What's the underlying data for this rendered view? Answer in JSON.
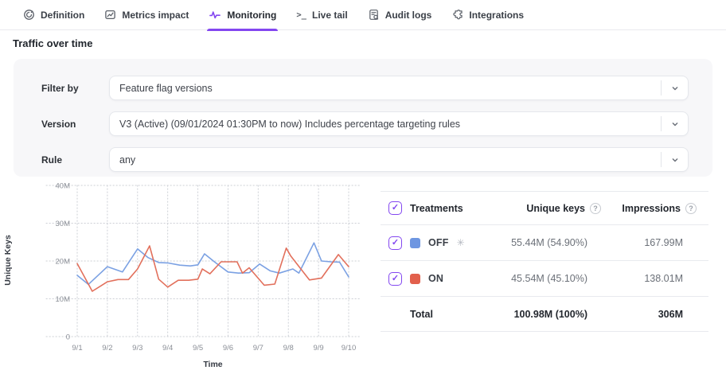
{
  "colors": {
    "accent": "#8347F0"
  },
  "tabs": [
    {
      "label": "Definition",
      "active": false
    },
    {
      "label": "Metrics impact",
      "active": false
    },
    {
      "label": "Monitoring",
      "active": true
    },
    {
      "label": "Live tail",
      "active": false
    },
    {
      "label": "Audit logs",
      "active": false
    },
    {
      "label": "Integrations",
      "active": false
    }
  ],
  "section_title": "Traffic over time",
  "filters": [
    {
      "label": "Filter by",
      "value": "Feature flag versions"
    },
    {
      "label": "Version",
      "value": "V3 (Active) (09/01/2024 01:30PM to now) Includes percentage targeting rules"
    },
    {
      "label": "Rule",
      "value": "any"
    }
  ],
  "chart_data": {
    "type": "line",
    "xlabel": "Time",
    "ylabel": "Unique Keys",
    "x_ticks": [
      "9/1",
      "9/2",
      "9/3",
      "9/4",
      "9/5",
      "9/6",
      "9/7",
      "9/8",
      "9/9",
      "9/10"
    ],
    "x_unit": "days from 9/1",
    "y_ticks": [
      "40M",
      "30M",
      "20M",
      "10M",
      "0"
    ],
    "ylim": [
      0,
      40
    ],
    "y_unit": "M",
    "grid": "dotted",
    "legend_position": "none",
    "series": [
      {
        "name": "OFF",
        "color": "#7BA1E3",
        "points": [
          [
            0,
            16.2
          ],
          [
            0.37,
            13.8
          ],
          [
            1,
            18.5
          ],
          [
            1.5,
            17.1
          ],
          [
            2,
            23.2
          ],
          [
            2.35,
            20.9
          ],
          [
            2.7,
            19.6
          ],
          [
            3,
            19.5
          ],
          [
            3.4,
            18.9
          ],
          [
            3.75,
            18.7
          ],
          [
            4,
            19.0
          ],
          [
            4.22,
            21.9
          ],
          [
            4.56,
            19.7
          ],
          [
            5,
            17.1
          ],
          [
            5.35,
            16.8
          ],
          [
            5.7,
            16.9
          ],
          [
            6.05,
            19.2
          ],
          [
            6.4,
            17.4
          ],
          [
            6.7,
            16.8
          ],
          [
            7.15,
            17.9
          ],
          [
            7.35,
            16.8
          ],
          [
            7.85,
            24.8
          ],
          [
            8.1,
            20.0
          ],
          [
            8.4,
            19.8
          ],
          [
            8.7,
            19.7
          ],
          [
            9,
            15.8
          ]
        ]
      },
      {
        "name": "ON",
        "color": "#E2705C",
        "points": [
          [
            0,
            19.3
          ],
          [
            0.5,
            12.0
          ],
          [
            1,
            14.5
          ],
          [
            1.35,
            15.1
          ],
          [
            1.7,
            15.1
          ],
          [
            2,
            17.9
          ],
          [
            2.4,
            24.0
          ],
          [
            2.7,
            15.2
          ],
          [
            3,
            13.1
          ],
          [
            3.35,
            14.9
          ],
          [
            3.7,
            14.9
          ],
          [
            4,
            15.2
          ],
          [
            4.15,
            17.9
          ],
          [
            4.4,
            16.6
          ],
          [
            4.77,
            19.8
          ],
          [
            5.3,
            19.8
          ],
          [
            5.48,
            16.8
          ],
          [
            5.7,
            18.2
          ],
          [
            6.2,
            13.6
          ],
          [
            6.55,
            13.9
          ],
          [
            6.93,
            23.4
          ],
          [
            7.08,
            21.3
          ],
          [
            7.7,
            15.0
          ],
          [
            8.1,
            15.5
          ],
          [
            8.66,
            21.7
          ],
          [
            9,
            18.5
          ]
        ]
      }
    ]
  },
  "treatments_table": {
    "header": {
      "treatments": "Treatments",
      "unique_keys": "Unique keys",
      "impressions": "Impressions"
    },
    "rows": [
      {
        "name": "OFF",
        "color": "#6E96E1",
        "default_treatment": true,
        "unique_keys": "55.44M (54.90%)",
        "impressions": "167.99M"
      },
      {
        "name": "ON",
        "color": "#E2604C",
        "default_treatment": false,
        "unique_keys": "45.54M (45.10%)",
        "impressions": "138.01M"
      }
    ],
    "total": {
      "label": "Total",
      "unique_keys": "100.98M (100%)",
      "impressions": "306M"
    }
  }
}
